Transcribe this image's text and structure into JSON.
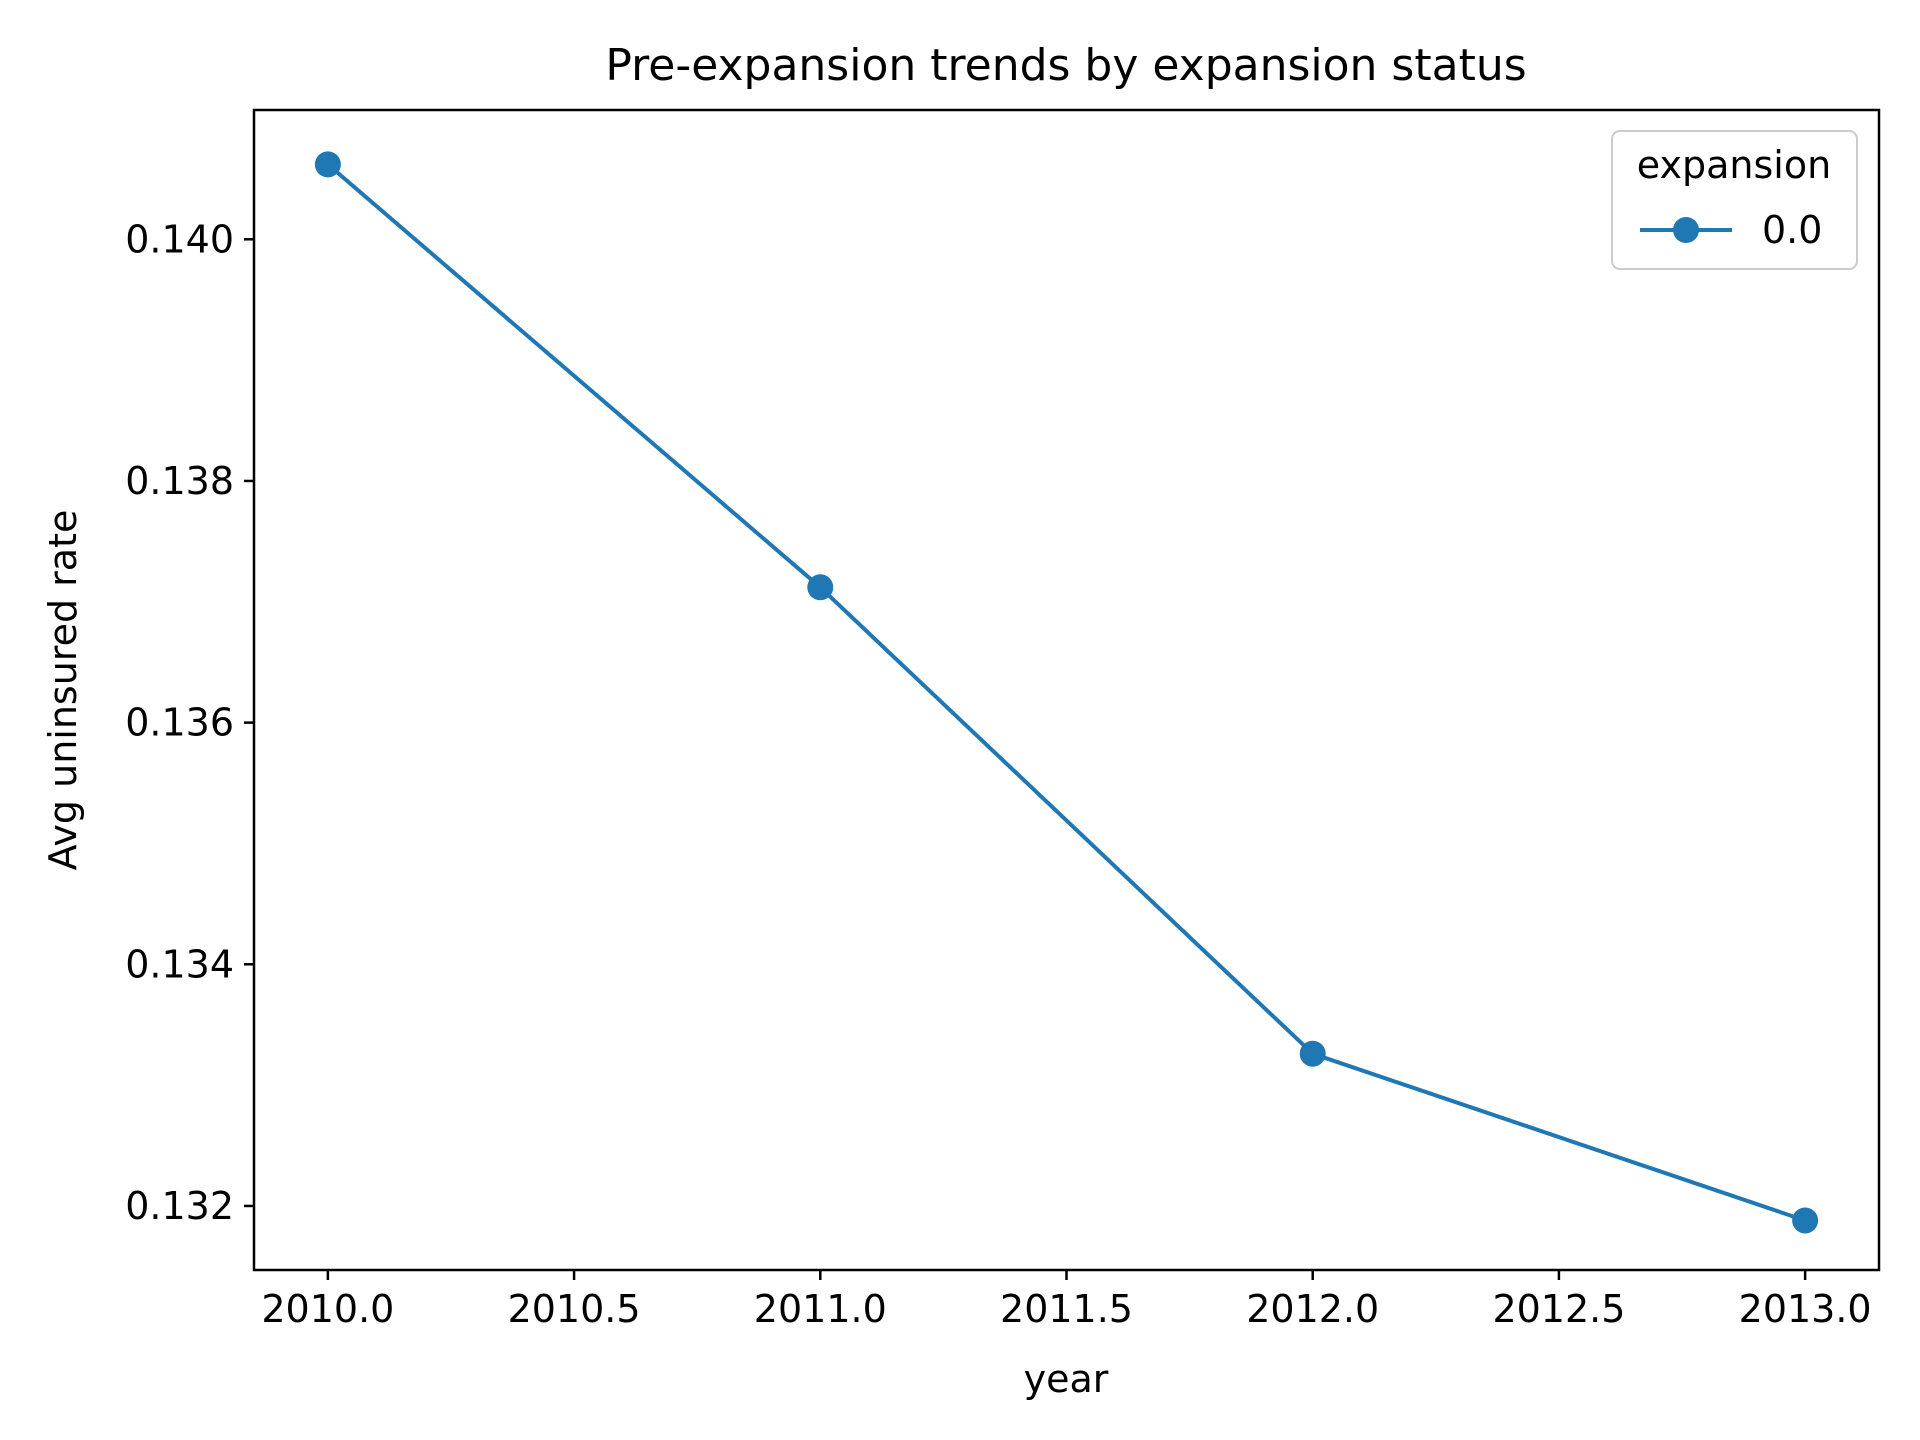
{
  "chart_data": {
    "type": "line",
    "title": "Pre-expansion trends by expansion status",
    "xlabel": "year",
    "ylabel": "Avg uninsured rate",
    "x": [
      2010,
      2011,
      2012,
      2013
    ],
    "series": [
      {
        "name": "0.0",
        "values": [
          0.14062,
          0.13712,
          0.13326,
          0.13188
        ],
        "color": "#1f77b4",
        "marker": "circle"
      }
    ],
    "xlim": [
      2009.85,
      2013.15
    ],
    "ylim": [
      0.13147,
      0.14107
    ],
    "xticks": [
      2010.0,
      2010.5,
      2011.0,
      2011.5,
      2012.0,
      2012.5,
      2013.0
    ],
    "xtick_labels": [
      "2010.0",
      "2010.5",
      "2011.0",
      "2011.5",
      "2012.0",
      "2012.5",
      "2013.0"
    ],
    "yticks": [
      0.132,
      0.134,
      0.136,
      0.138,
      0.14
    ],
    "ytick_labels": [
      "0.132",
      "0.134",
      "0.136",
      "0.138",
      "0.140"
    ],
    "grid": false,
    "legend": {
      "title": "expansion",
      "placement": "top-right"
    }
  }
}
